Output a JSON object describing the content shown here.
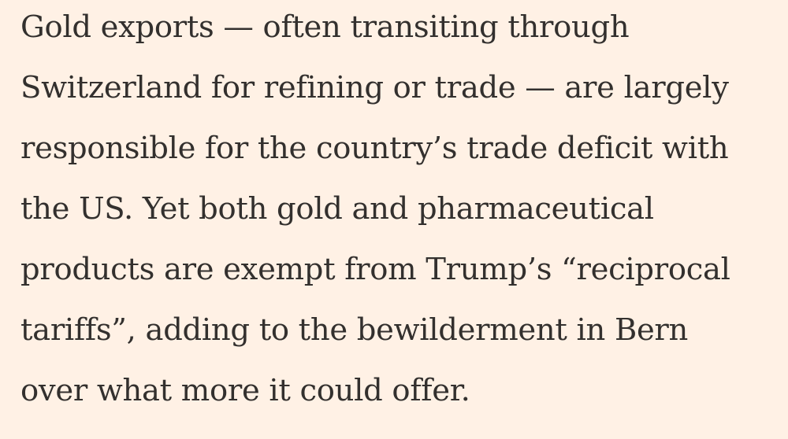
{
  "article": {
    "paragraph_lines": [
      "Gold exports — often transiting through",
      "Switzerland for refining or trade — are largely",
      "responsible for the country’s trade deficit with",
      "the US. Yet both gold and pharmaceutical",
      "products are exempt from Trump’s “reciprocal",
      "tariffs”, adding to the bewilderment in Bern",
      "over what more it could offer."
    ]
  },
  "colors": {
    "background": "#fff1e5",
    "text": "#33302e"
  }
}
